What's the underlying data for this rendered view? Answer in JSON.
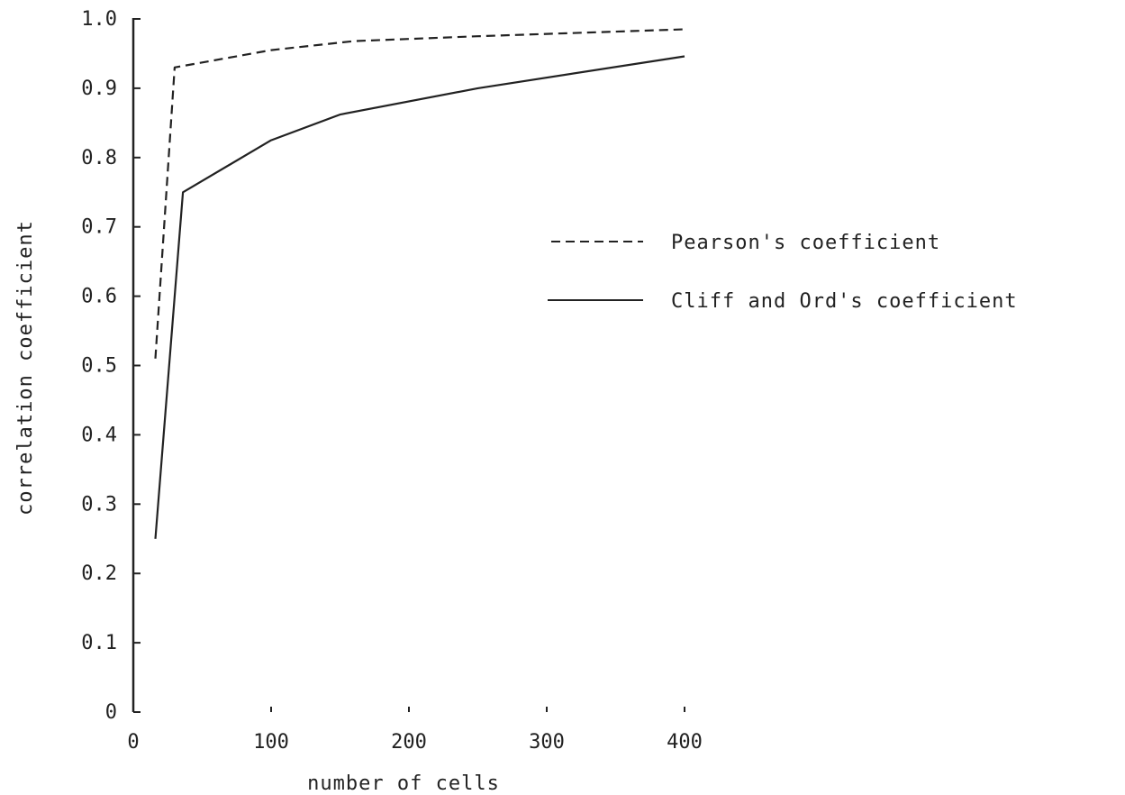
{
  "chart_data": {
    "type": "line",
    "xlabel": "number of cells",
    "ylabel": "correlation coefficient",
    "xlim": [
      0,
      400
    ],
    "ylim": [
      0,
      1.0
    ],
    "x_ticks": [
      0,
      100,
      200,
      300,
      400
    ],
    "x_tick_labels": [
      "0",
      "100",
      "200",
      "300",
      "400"
    ],
    "y_ticks": [
      0,
      0.1,
      0.2,
      0.3,
      0.4,
      0.5,
      0.6,
      0.7,
      0.8,
      0.9,
      1.0
    ],
    "y_tick_labels": [
      "0",
      "0.1",
      "0.2",
      "0.3",
      "0.4",
      "0.5",
      "0.6",
      "0.7",
      "0.8",
      "0.9",
      "1.0"
    ],
    "grid": false,
    "legend_position": "right",
    "series": [
      {
        "name": "Pearson's coefficient",
        "style": "dashed",
        "color": "#222222",
        "x": [
          16,
          30,
          100,
          160,
          250,
          400
        ],
        "y": [
          0.51,
          0.93,
          0.955,
          0.968,
          0.975,
          0.985
        ]
      },
      {
        "name": "Cliff and Ord's coefficient",
        "style": "solid",
        "color": "#222222",
        "x": [
          16,
          36,
          100,
          150,
          250,
          400
        ],
        "y": [
          0.25,
          0.75,
          0.825,
          0.862,
          0.9,
          0.946
        ]
      }
    ]
  }
}
